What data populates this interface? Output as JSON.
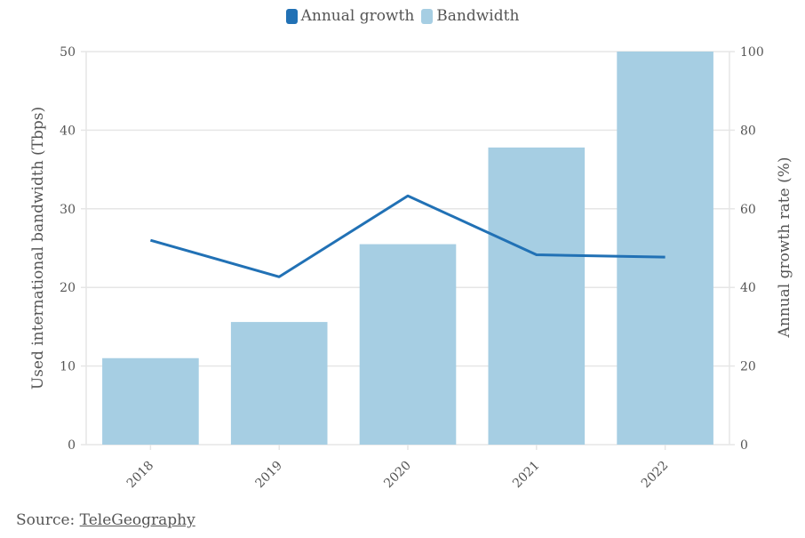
{
  "legend": {
    "line_label": "Annual growth",
    "bar_label": "Bandwidth"
  },
  "colors": {
    "line": "#2171b5",
    "bar": "#a6cee3",
    "grid": "#e6e6e6",
    "text": "#555555"
  },
  "source": {
    "prefix": "Source: ",
    "link_text": "TeleGeography"
  },
  "chart_data": {
    "type": "bar",
    "categories": [
      "2018",
      "2019",
      "2020",
      "2021",
      "2022"
    ],
    "ylabel": "Used international bandwidth (Tbps)",
    "y2label": "Annual growth rate (%)",
    "ylim": [
      0,
      50
    ],
    "y2lim": [
      0,
      100
    ],
    "yticks": [
      0,
      10,
      20,
      30,
      40,
      50
    ],
    "y2ticks": [
      0,
      20,
      40,
      60,
      80,
      100
    ],
    "series": [
      {
        "name": "Bandwidth",
        "type": "bar",
        "axis": "left",
        "values": [
          11,
          15.6,
          25.5,
          37.8,
          50
        ]
      },
      {
        "name": "Annual growth",
        "type": "line",
        "axis": "right",
        "values": [
          52,
          42.7,
          63.3,
          48.3,
          47.7
        ]
      }
    ],
    "legend_position": "top-center",
    "grid": true
  }
}
